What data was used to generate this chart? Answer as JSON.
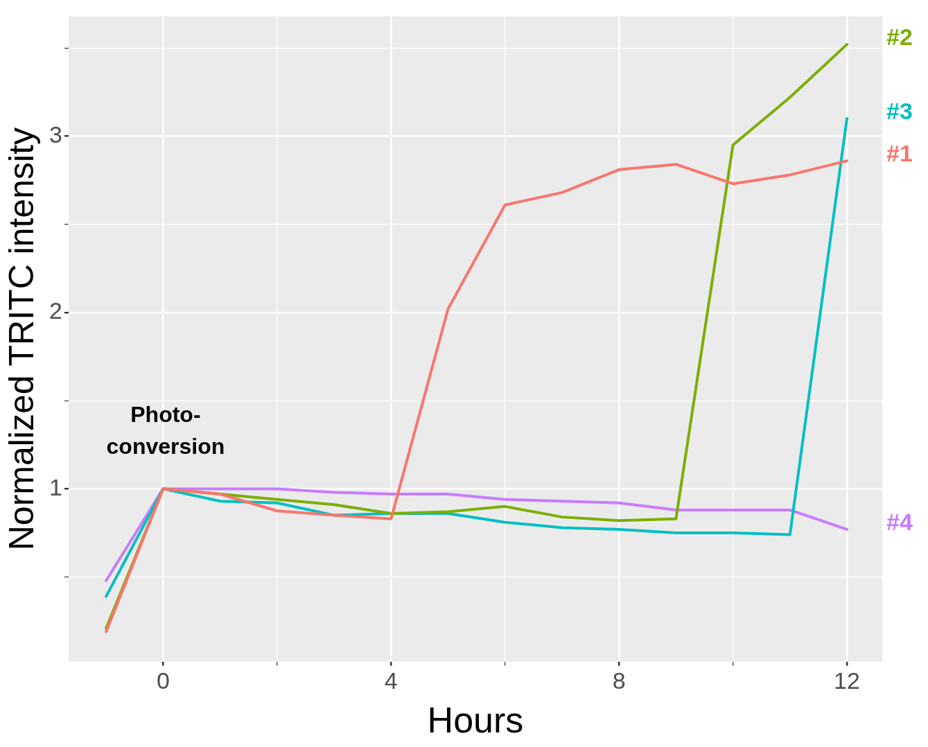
{
  "chart_data": {
    "type": "line",
    "xlabel": "Hours",
    "ylabel": "Normalized TRITC intensity",
    "x": [
      -1,
      0,
      1,
      2,
      3,
      4,
      5,
      6,
      7,
      8,
      9,
      10,
      11,
      12
    ],
    "series": [
      {
        "name": "#1",
        "color": "#f8766d",
        "values": [
          0.19,
          1.0,
          0.97,
          0.875,
          0.85,
          0.83,
          2.02,
          2.61,
          2.68,
          2.81,
          2.84,
          2.73,
          2.78,
          2.86
        ]
      },
      {
        "name": "#2",
        "color": "#7cae00",
        "values": [
          0.21,
          1.0,
          0.97,
          0.94,
          0.91,
          0.86,
          0.87,
          0.9,
          0.84,
          0.82,
          0.83,
          2.95,
          3.22,
          3.52
        ]
      },
      {
        "name": "#3",
        "color": "#00bfc4",
        "values": [
          0.39,
          1.0,
          0.93,
          0.92,
          0.85,
          0.86,
          0.86,
          0.81,
          0.78,
          0.77,
          0.75,
          0.75,
          0.74,
          3.1
        ]
      },
      {
        "name": "#4",
        "color": "#c77cff",
        "values": [
          0.48,
          1.0,
          1.0,
          1.0,
          0.98,
          0.97,
          0.97,
          0.94,
          0.93,
          0.92,
          0.88,
          0.88,
          0.88,
          0.77
        ]
      }
    ],
    "xlim": [
      -1.66,
      12.62
    ],
    "xticks": [
      0,
      {
        "value": 2,
        "label": null
      },
      4,
      {
        "value": 6,
        "label": null
      },
      8,
      {
        "value": 10,
        "label": null
      },
      12
    ],
    "ylim": [
      0.02,
      3.68
    ],
    "yticks": [
      {
        "value": 0.5,
        "label": null
      },
      1,
      {
        "value": 1.5,
        "label": null
      },
      2,
      {
        "value": 2.5,
        "label": null
      },
      3,
      {
        "value": 3.5,
        "label": null
      }
    ],
    "grid": true,
    "legend": false,
    "annotations": [
      "Photo-\nconversion"
    ]
  }
}
